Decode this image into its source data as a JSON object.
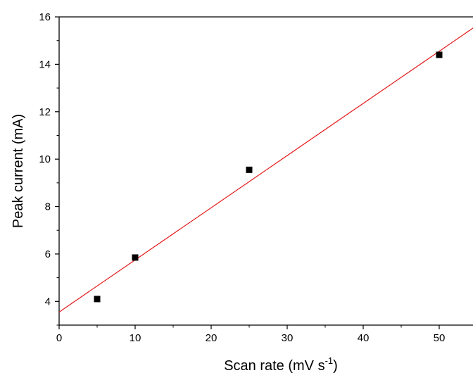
{
  "chart_data": {
    "type": "scatter",
    "xlabel": "Scan rate (mV s",
    "xlabel_superscript": "-1",
    "xlabel_suffix": ")",
    "ylabel": "Peak current (mA)",
    "xlim": [
      0,
      55
    ],
    "ylim": [
      3,
      16
    ],
    "x_ticks": [
      0,
      10,
      20,
      30,
      40,
      50
    ],
    "y_ticks": [
      4,
      6,
      8,
      10,
      12,
      14,
      16
    ],
    "grid": false,
    "series": [
      {
        "marker": "square",
        "color": "#000000",
        "x": [
          5,
          10,
          25,
          50
        ],
        "y": [
          4.1,
          5.85,
          9.55,
          14.4
        ]
      }
    ],
    "fit_line": {
      "color": "#e41a1c",
      "slope": 0.22,
      "intercept": 3.55
    }
  }
}
